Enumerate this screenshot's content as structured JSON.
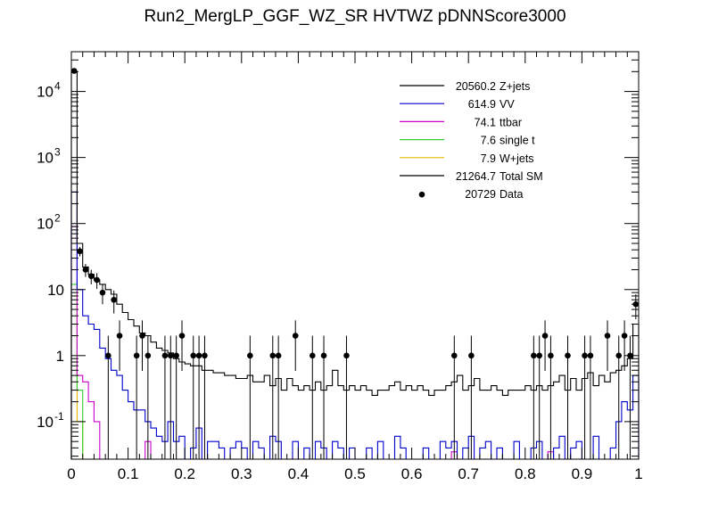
{
  "chart_data": {
    "type": "histogram",
    "title": "Run2_MergLP_GGF_WZ_SR HVTWZ  pDNNScore3000",
    "xlabel": "",
    "ylabel": "",
    "xlim": [
      0,
      1
    ],
    "ylim": [
      0.027,
      40000
    ],
    "yscale": "log",
    "x_ticks": [
      "0",
      "0.1",
      "0.2",
      "0.3",
      "0.4",
      "0.5",
      "0.6",
      "0.7",
      "0.8",
      "0.9",
      "1"
    ],
    "y_ticks": [
      {
        "label": "10",
        "exp": "-1",
        "value": 0.1
      },
      {
        "label": "1",
        "exp": "",
        "value": 1
      },
      {
        "label": "10",
        "exp": "",
        "value": 10
      },
      {
        "label": "10",
        "exp": "2",
        "value": 100
      },
      {
        "label": "10",
        "exp": "3",
        "value": 1000
      },
      {
        "label": "10",
        "exp": "4",
        "value": 10000
      }
    ],
    "bin_width": 0.01,
    "legend_position": "top-right",
    "legend": [
      {
        "value": "20560.2",
        "name": "Z+jets",
        "color": "#000000",
        "style": "line"
      },
      {
        "value": "614.9",
        "name": "VV",
        "color": "#0000cc",
        "style": "line"
      },
      {
        "value": "74.1",
        "name": "ttbar",
        "color": "#cc00cc",
        "style": "line"
      },
      {
        "value": "7.6",
        "name": "single t",
        "color": "#33cc33",
        "style": "line"
      },
      {
        "value": "7.9",
        "name": "W+jets",
        "color": "#e6b800",
        "style": "line"
      },
      {
        "value": "21264.7",
        "name": "Total SM",
        "color": "#000000",
        "style": "line"
      },
      {
        "value": "20729",
        "name": "Data",
        "color": "#000000",
        "style": "marker"
      }
    ],
    "total_sm": [
      19800,
      50,
      22,
      17,
      14,
      12,
      10,
      8.5,
      6,
      4.5,
      3.5,
      2.8,
      2.2,
      2.0,
      1.6,
      1.3,
      1.2,
      1.1,
      0.9,
      0.8,
      0.75,
      0.7,
      0.7,
      0.6,
      0.6,
      0.55,
      0.55,
      0.5,
      0.5,
      0.45,
      0.45,
      0.5,
      0.4,
      0.4,
      0.5,
      0.35,
      0.45,
      0.3,
      0.45,
      0.35,
      0.3,
      0.35,
      0.3,
      0.4,
      0.3,
      0.35,
      0.6,
      0.35,
      0.3,
      0.35,
      0.3,
      0.35,
      0.3,
      0.25,
      0.3,
      0.3,
      0.35,
      0.4,
      0.3,
      0.35,
      0.3,
      0.35,
      0.3,
      0.25,
      0.3,
      0.3,
      0.35,
      0.4,
      0.5,
      0.3,
      0.35,
      0.45,
      0.3,
      0.3,
      0.35,
      0.3,
      0.25,
      0.3,
      0.3,
      0.3,
      0.35,
      0.3,
      0.35,
      0.3,
      0.35,
      0.4,
      0.5,
      0.3,
      0.45,
      0.3,
      0.45,
      0.55,
      0.35,
      0.5,
      0.4,
      0.55,
      0.6,
      0.7,
      0.9,
      3.0
    ],
    "vv": [
      300,
      10,
      4,
      3,
      2.5,
      1.3,
      0.9,
      0.6,
      0.5,
      0.3,
      0.2,
      0.15,
      0.15,
      0.1,
      0.08,
      0.06,
      0.05,
      0.1,
      0.05,
      0.06,
      0,
      0.04,
      0.08,
      0,
      0.05,
      0.05,
      0.04,
      0,
      0.04,
      0.05,
      0.04,
      0,
      0.05,
      0.04,
      0,
      0.06,
      0.05,
      0,
      0,
      0.05,
      0,
      0.04,
      0,
      0.05,
      0.04,
      0,
      0.05,
      0.04,
      0,
      0.04,
      0,
      0,
      0.04,
      0,
      0.05,
      0,
      0,
      0.06,
      0.04,
      0,
      0,
      0,
      0.04,
      0,
      0,
      0.05,
      0.04,
      0.05,
      0,
      0.04,
      0.06,
      0,
      0.04,
      0.05,
      0,
      0.04,
      0,
      0,
      0.05,
      0,
      0,
      0.04,
      0.05,
      0,
      0,
      0.04,
      0.06,
      0,
      0.04,
      0.05,
      0,
      0,
      0.06,
      0,
      0,
      0.04,
      0.1,
      0.2,
      0.15,
      0.5
    ],
    "ttbar": [
      90,
      0.5,
      0.4,
      0.2,
      0.1,
      0,
      0,
      0,
      0,
      0,
      0,
      0,
      0,
      0.05,
      0,
      0,
      0,
      0,
      0,
      0,
      0,
      0,
      0,
      0,
      0,
      0,
      0,
      0,
      0,
      0,
      0,
      0,
      0,
      0,
      0,
      0,
      0,
      0,
      0,
      0,
      0,
      0,
      0,
      0,
      0,
      0,
      0,
      0,
      0,
      0,
      0,
      0,
      0,
      0,
      0,
      0,
      0,
      0,
      0,
      0,
      0,
      0,
      0,
      0,
      0,
      0,
      0,
      0.035,
      0,
      0,
      0,
      0,
      0,
      0,
      0,
      0,
      0,
      0,
      0,
      0,
      0,
      0,
      0,
      0,
      0.035,
      0,
      0,
      0,
      0,
      0,
      0,
      0,
      0,
      0,
      0,
      0,
      0,
      0,
      0,
      0
    ],
    "single_t": [
      12,
      0.3,
      0,
      0,
      0,
      0,
      0,
      0,
      0,
      0,
      0,
      0,
      0,
      0,
      0,
      0,
      0,
      0,
      0,
      0,
      0,
      0,
      0,
      0,
      0,
      0,
      0,
      0,
      0,
      0,
      0,
      0,
      0,
      0,
      0,
      0,
      0,
      0,
      0,
      0,
      0,
      0,
      0,
      0,
      0,
      0,
      0,
      0,
      0,
      0,
      0,
      0,
      0,
      0,
      0,
      0,
      0,
      0,
      0,
      0,
      0,
      0,
      0,
      0,
      0,
      0,
      0,
      0,
      0,
      0,
      0,
      0,
      0,
      0,
      0,
      0,
      0,
      0,
      0,
      0,
      0,
      0,
      0,
      0,
      0,
      0,
      0,
      0,
      0,
      0,
      0,
      0,
      0,
      0,
      0,
      0,
      0,
      0,
      0,
      0
    ],
    "wjets": [
      8,
      0.1,
      0,
      0,
      0,
      0,
      0,
      0,
      0,
      0,
      0,
      0,
      0,
      0,
      0,
      0,
      0,
      0,
      0,
      0,
      0,
      0,
      0,
      0,
      0,
      0,
      0,
      0,
      0,
      0,
      0,
      0,
      0,
      0,
      0,
      0,
      0,
      0,
      0,
      0,
      0,
      0,
      0,
      0,
      0,
      0,
      0,
      0,
      0,
      0,
      0,
      0,
      0,
      0,
      0,
      0,
      0,
      0,
      0,
      0,
      0,
      0,
      0,
      0,
      0,
      0,
      0,
      0,
      0,
      0,
      0,
      0,
      0,
      0,
      0,
      0,
      0,
      0,
      0,
      0,
      0,
      0,
      0,
      0,
      0,
      0,
      0,
      0,
      0,
      0,
      0,
      0,
      0,
      0,
      0,
      0,
      0,
      0,
      0,
      0
    ],
    "data": [
      {
        "x": 0.005,
        "y": 20500
      },
      {
        "x": 0.015,
        "y": 38
      },
      {
        "x": 0.025,
        "y": 20
      },
      {
        "x": 0.035,
        "y": 16
      },
      {
        "x": 0.045,
        "y": 14
      },
      {
        "x": 0.055,
        "y": 9
      },
      {
        "x": 0.065,
        "y": 1
      },
      {
        "x": 0.075,
        "y": 7
      },
      {
        "x": 0.085,
        "y": 2
      },
      {
        "x": 0.115,
        "y": 1
      },
      {
        "x": 0.125,
        "y": 2
      },
      {
        "x": 0.135,
        "y": 1
      },
      {
        "x": 0.165,
        "y": 1
      },
      {
        "x": 0.175,
        "y": 1
      },
      {
        "x": 0.185,
        "y": 1
      },
      {
        "x": 0.195,
        "y": 2
      },
      {
        "x": 0.215,
        "y": 1
      },
      {
        "x": 0.225,
        "y": 1
      },
      {
        "x": 0.235,
        "y": 1
      },
      {
        "x": 0.315,
        "y": 1
      },
      {
        "x": 0.355,
        "y": 1
      },
      {
        "x": 0.365,
        "y": 1
      },
      {
        "x": 0.395,
        "y": 2
      },
      {
        "x": 0.425,
        "y": 1
      },
      {
        "x": 0.445,
        "y": 1
      },
      {
        "x": 0.485,
        "y": 1
      },
      {
        "x": 0.675,
        "y": 1
      },
      {
        "x": 0.705,
        "y": 1
      },
      {
        "x": 0.815,
        "y": 1
      },
      {
        "x": 0.825,
        "y": 1
      },
      {
        "x": 0.835,
        "y": 2
      },
      {
        "x": 0.845,
        "y": 1
      },
      {
        "x": 0.875,
        "y": 1
      },
      {
        "x": 0.905,
        "y": 1
      },
      {
        "x": 0.915,
        "y": 1
      },
      {
        "x": 0.945,
        "y": 2
      },
      {
        "x": 0.965,
        "y": 1
      },
      {
        "x": 0.975,
        "y": 2
      },
      {
        "x": 0.985,
        "y": 1
      },
      {
        "x": 0.995,
        "y": 6
      }
    ]
  }
}
